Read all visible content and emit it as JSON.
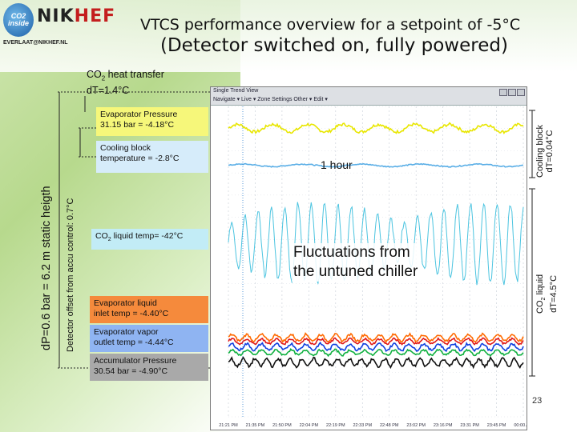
{
  "header": {
    "logo_co2": "CO2 inside",
    "logo_brand_a": "NIK",
    "logo_brand_b": "HEF",
    "email": "EVERLAAT@NIKHEF.NL",
    "title_line1": "VTCS performance overview for a setpoint of -5°C",
    "title_line2": "(Detector switched on, fully powered)"
  },
  "left_labels": {
    "co2_heat_transfer": "CO",
    "co2_heat_transfer_sub": "2",
    "co2_heat_transfer_rest": " heat transfer",
    "dT": "dT=1.4°C",
    "dP_static": "dP=0.6 bar = 6.2 m static heigth",
    "accu_offset": "Detector offset from accu control: 0.7°C"
  },
  "right_labels": {
    "cooling_block_dT": "Cooling block",
    "cooling_block_dT2": "dT=0.04°C",
    "co2_liquid_dT": "CO",
    "co2_liquid_sub": "2",
    "co2_liquid_rest": " liquid",
    "co2_liquid_dT2": "dT=4.5°C"
  },
  "plot_window": {
    "toolbar_title": "Single Trend View",
    "toolbar_items": "Navigate ▾   Live ▾   Zone Settings  Other ▾   Edit ▾"
  },
  "annotations": {
    "evap_pressure": "Evaporator Pressure",
    "evap_pressure2": "31.15 bar = -4.18°C",
    "cooling_block": "Cooling block",
    "cooling_block2": "temperature = -2.8°C",
    "co2_liquid_a": "CO",
    "co2_liquid_sub": "2",
    "co2_liquid_b": " liquid temp= -42°C",
    "evap_liquid": "Evaporator liquid",
    "evap_liquid2": "inlet temp = -4.40°C",
    "evap_vapor": "Evaporator vapor",
    "evap_vapor2": "outlet temp = -4.44°C",
    "accu_pressure": "Accumulator Pressure",
    "accu_pressure2": "30.54 bar = -4.90°C",
    "one_hour": "1 hour",
    "fluct1": "Fluctuations from",
    "fluct2": "the untuned chiller"
  },
  "page_number": "23",
  "colors": {
    "evap_pressure": "#e8e600",
    "cooling_block": "#5aaee6",
    "co2_liquid": "#4cc4e0",
    "evap_liquid": "#ff6a00",
    "evap_vapor": "#1040e0",
    "accu_pressure": "#111111",
    "red_trace": "#e01818",
    "green_trace": "#10b040"
  },
  "chart_data": {
    "type": "line",
    "title": "",
    "xlabel": "",
    "ylabel": "",
    "x_ticks": [
      "21:21 PM",
      "21:35 PM",
      "21:50 PM",
      "22:04 PM",
      "22:19 PM",
      "22:33 PM",
      "22:48 PM",
      "23:02 PM",
      "23:16 PM",
      "23:31 PM",
      "23:45 PM",
      "00:00 AM"
    ],
    "series": [
      {
        "name": "Evaporator Pressure",
        "level": 0.93,
        "amplitude": 0.012,
        "period": 0.12
      },
      {
        "name": "Cooling block",
        "level": 0.81,
        "amplitude": 0.004,
        "period": 0.2
      },
      {
        "name": "CO2 liquid",
        "level": 0.56,
        "amplitude": 0.13,
        "period": 0.045
      },
      {
        "name": "Evaporator liquid",
        "level": 0.255,
        "amplitude": 0.01,
        "period": 0.05
      },
      {
        "name": "Evaporator vapor",
        "level": 0.225,
        "amplitude": 0.01,
        "period": 0.05
      },
      {
        "name": "Accumulator Pressure",
        "level": 0.175,
        "amplitude": 0.012,
        "period": 0.04
      }
    ]
  }
}
